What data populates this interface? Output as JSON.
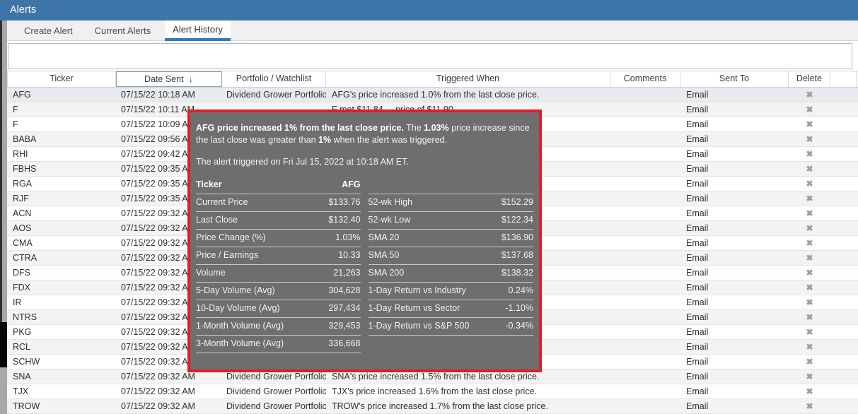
{
  "window": {
    "title": "Alerts"
  },
  "tabs": [
    {
      "label": "Create Alert",
      "active": false
    },
    {
      "label": "Current Alerts",
      "active": false
    },
    {
      "label": "Alert History",
      "active": true
    }
  ],
  "table": {
    "columns": [
      "Ticker",
      "Date Sent",
      "Portfolio / Watchlist",
      "Triggered When",
      "Comments",
      "Sent To",
      "Delete"
    ],
    "sorted_column": "Date Sent",
    "sort_icon": "↓",
    "delete_icon": "✖",
    "rows": [
      {
        "ticker": "AFG",
        "date": "07/15/22 10:18 AM",
        "portfolio": "Dividend Grower Portfolio",
        "triggered": "AFG's price increased 1.0% from the last close price.",
        "comments": "",
        "sent_to": "Email",
        "selected": true
      },
      {
        "ticker": "F",
        "date": "07/15/22 10:11 AM",
        "portfolio": "",
        "triggered": "F met $11.84 ... price of $11.90.",
        "comments": "",
        "sent_to": "Email",
        "selected": false
      },
      {
        "ticker": "F",
        "date": "07/15/22 10:09 AM",
        "portfolio": "",
        "triggered": "",
        "comments": "",
        "sent_to": "Email",
        "selected": false
      },
      {
        "ticker": "BABA",
        "date": "07/15/22 09:56 AM",
        "portfolio": "",
        "triggered": "",
        "comments": "",
        "sent_to": "Email",
        "selected": false
      },
      {
        "ticker": "RHI",
        "date": "07/15/22 09:42 AM",
        "portfolio": "",
        "triggered": "",
        "comments": "",
        "sent_to": "Email",
        "selected": false
      },
      {
        "ticker": "FBHS",
        "date": "07/15/22 09:35 AM",
        "portfolio": "",
        "triggered": "",
        "comments": "",
        "sent_to": "Email",
        "selected": false
      },
      {
        "ticker": "RGA",
        "date": "07/15/22 09:35 AM",
        "portfolio": "",
        "triggered": "",
        "comments": "",
        "sent_to": "Email",
        "selected": false
      },
      {
        "ticker": "RJF",
        "date": "07/15/22 09:35 AM",
        "portfolio": "",
        "triggered": "",
        "comments": "",
        "sent_to": "Email",
        "selected": false
      },
      {
        "ticker": "ACN",
        "date": "07/15/22 09:32 AM",
        "portfolio": "",
        "triggered": "",
        "comments": "",
        "sent_to": "Email",
        "selected": false
      },
      {
        "ticker": "AOS",
        "date": "07/15/22 09:32 AM",
        "portfolio": "",
        "triggered": "",
        "comments": "",
        "sent_to": "Email",
        "selected": false
      },
      {
        "ticker": "CMA",
        "date": "07/15/22 09:32 AM",
        "portfolio": "",
        "triggered": "",
        "comments": "",
        "sent_to": "Email",
        "selected": false
      },
      {
        "ticker": "CTRA",
        "date": "07/15/22 09:32 AM",
        "portfolio": "",
        "triggered": "",
        "comments": "",
        "sent_to": "Email",
        "selected": false
      },
      {
        "ticker": "DFS",
        "date": "07/15/22 09:32 AM",
        "portfolio": "",
        "triggered": "",
        "comments": "",
        "sent_to": "Email",
        "selected": false
      },
      {
        "ticker": "FDX",
        "date": "07/15/22 09:32 AM",
        "portfolio": "",
        "triggered": "",
        "comments": "",
        "sent_to": "Email",
        "selected": false
      },
      {
        "ticker": "IR",
        "date": "07/15/22 09:32 AM",
        "portfolio": "",
        "triggered": "",
        "comments": "",
        "sent_to": "Email",
        "selected": false
      },
      {
        "ticker": "NTRS",
        "date": "07/15/22 09:32 AM",
        "portfolio": "",
        "triggered": "",
        "comments": "",
        "sent_to": "Email",
        "selected": false
      },
      {
        "ticker": "PKG",
        "date": "07/15/22 09:32 AM",
        "portfolio": "",
        "triggered": "",
        "comments": "",
        "sent_to": "Email",
        "selected": false
      },
      {
        "ticker": "RCL",
        "date": "07/15/22 09:32 AM",
        "portfolio": "",
        "triggered": "",
        "comments": "",
        "sent_to": "Email",
        "selected": false
      },
      {
        "ticker": "SCHW",
        "date": "07/15/22 09:32 AM",
        "portfolio": "",
        "triggered": "",
        "comments": "",
        "sent_to": "Email",
        "selected": false
      },
      {
        "ticker": "SNA",
        "date": "07/15/22 09:32 AM",
        "portfolio": "Dividend Grower Portfolio",
        "triggered": "SNA's price increased 1.5% from the last close price.",
        "comments": "",
        "sent_to": "Email",
        "selected": false
      },
      {
        "ticker": "TJX",
        "date": "07/15/22 09:32 AM",
        "portfolio": "Dividend Grower Portfolio",
        "triggered": "TJX's price increased 1.6% from the last close price.",
        "comments": "",
        "sent_to": "Email",
        "selected": false
      },
      {
        "ticker": "TROW",
        "date": "07/15/22 09:32 AM",
        "portfolio": "Dividend Grower Portfolio",
        "triggered": "TROW's price increased 1.7% from the last close price.",
        "comments": "",
        "sent_to": "Email",
        "selected": false
      }
    ]
  },
  "tooltip": {
    "title_segments": [
      {
        "text": "AFG price increased 1% from the last close price.",
        "bold": true
      },
      {
        "text": " The ",
        "bold": false
      },
      {
        "text": "1.03%",
        "bold": true
      },
      {
        "text": " price increase since the last close was greater than ",
        "bold": false
      },
      {
        "text": "1%",
        "bold": true
      },
      {
        "text": " when the alert was triggered.",
        "bold": false
      }
    ],
    "triggered_line": "The alert triggered on Fri Jul 15, 2022 at 10:18 AM ET.",
    "stats_left": [
      {
        "label": "Ticker",
        "value": "AFG",
        "bold": true
      },
      {
        "label": "Current Price",
        "value": "$133.76",
        "bold": false
      },
      {
        "label": "Last Close",
        "value": "$132.40",
        "bold": false
      },
      {
        "label": "Price Change (%)",
        "value": "1.03%",
        "bold": false
      },
      {
        "label": "Price / Earnings",
        "value": "10.33",
        "bold": false
      },
      {
        "label": "Volume",
        "value": "21,263",
        "bold": false
      },
      {
        "label": "5-Day Volume (Avg)",
        "value": "304,628",
        "bold": false
      },
      {
        "label": "10-Day Volume (Avg)",
        "value": "297,434",
        "bold": false
      },
      {
        "label": "1-Month Volume (Avg)",
        "value": "329,453",
        "bold": false
      },
      {
        "label": "3-Month Volume (Avg)",
        "value": "336,668",
        "bold": false
      }
    ],
    "stats_right": [
      {
        "label": "",
        "value": "",
        "bold": false
      },
      {
        "label": "52-wk High",
        "value": "$152.29",
        "bold": false
      },
      {
        "label": "52-wk Low",
        "value": "$122.34",
        "bold": false
      },
      {
        "label": "SMA 20",
        "value": "$136.90",
        "bold": false
      },
      {
        "label": "SMA 50",
        "value": "$137.68",
        "bold": false
      },
      {
        "label": "SMA 200",
        "value": "$138.32",
        "bold": false
      },
      {
        "label": "1-Day Return vs Industry",
        "value": "0.24%",
        "bold": false
      },
      {
        "label": "1-Day Return vs Sector",
        "value": "-1.10%",
        "bold": false
      },
      {
        "label": "1-Day Return vs S&P 500",
        "value": "-0.34%",
        "bold": false
      },
      null
    ]
  },
  "colors": {
    "titlebar_blue": "#3e75a8",
    "tab_underline_blue": "#3178c6",
    "tooltip_background": "#6e6e6e",
    "tooltip_border_red": "#dd2026",
    "selected_row": "#e7eaef",
    "stripe_row": "#f3f3f4"
  }
}
